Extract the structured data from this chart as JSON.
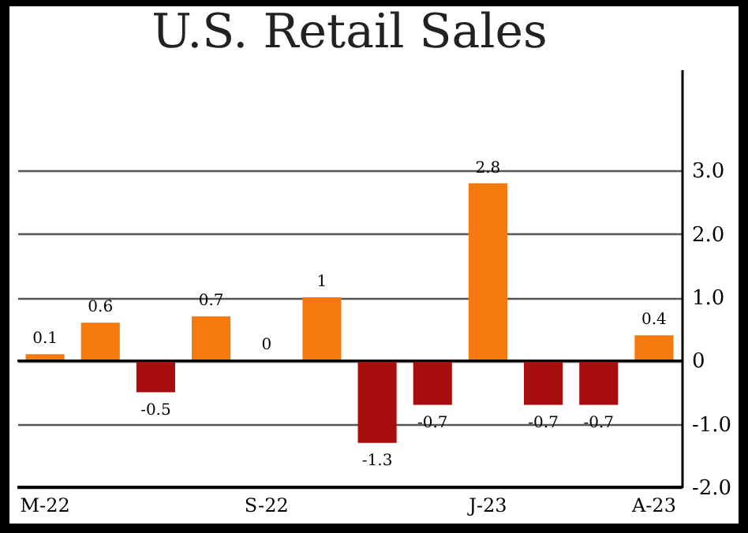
{
  "chart_data": {
    "type": "bar",
    "title": "U.S. Retail Sales",
    "categories": [
      "M-22",
      null,
      null,
      null,
      "S-22",
      null,
      null,
      null,
      "J-23",
      null,
      null,
      "A-23"
    ],
    "values": [
      0.1,
      0.6,
      -0.5,
      0.7,
      0,
      1,
      -1.3,
      -0.7,
      2.8,
      -0.7,
      -0.7,
      0.4
    ],
    "colors": [
      "#f57a0e",
      "#f57a0e",
      "#a80e0e",
      "#f57a0e",
      "#f57a0e",
      "#f57a0e",
      "#a80e0e",
      "#a80e0e",
      "#f57a0e",
      "#a80e0e",
      "#a80e0e",
      "#f57a0e"
    ],
    "ylim": [
      -2,
      4.6
    ],
    "yticks": [
      {
        "value": -2,
        "label": "-2.0"
      },
      {
        "value": -1,
        "label": "-1.0"
      },
      {
        "value": 0,
        "label": "0"
      },
      {
        "value": 1,
        "label": "1.0"
      },
      {
        "value": 2,
        "label": "2.0"
      },
      {
        "value": 3,
        "label": "3.0"
      }
    ],
    "grid": "y",
    "data_labels": true
  }
}
